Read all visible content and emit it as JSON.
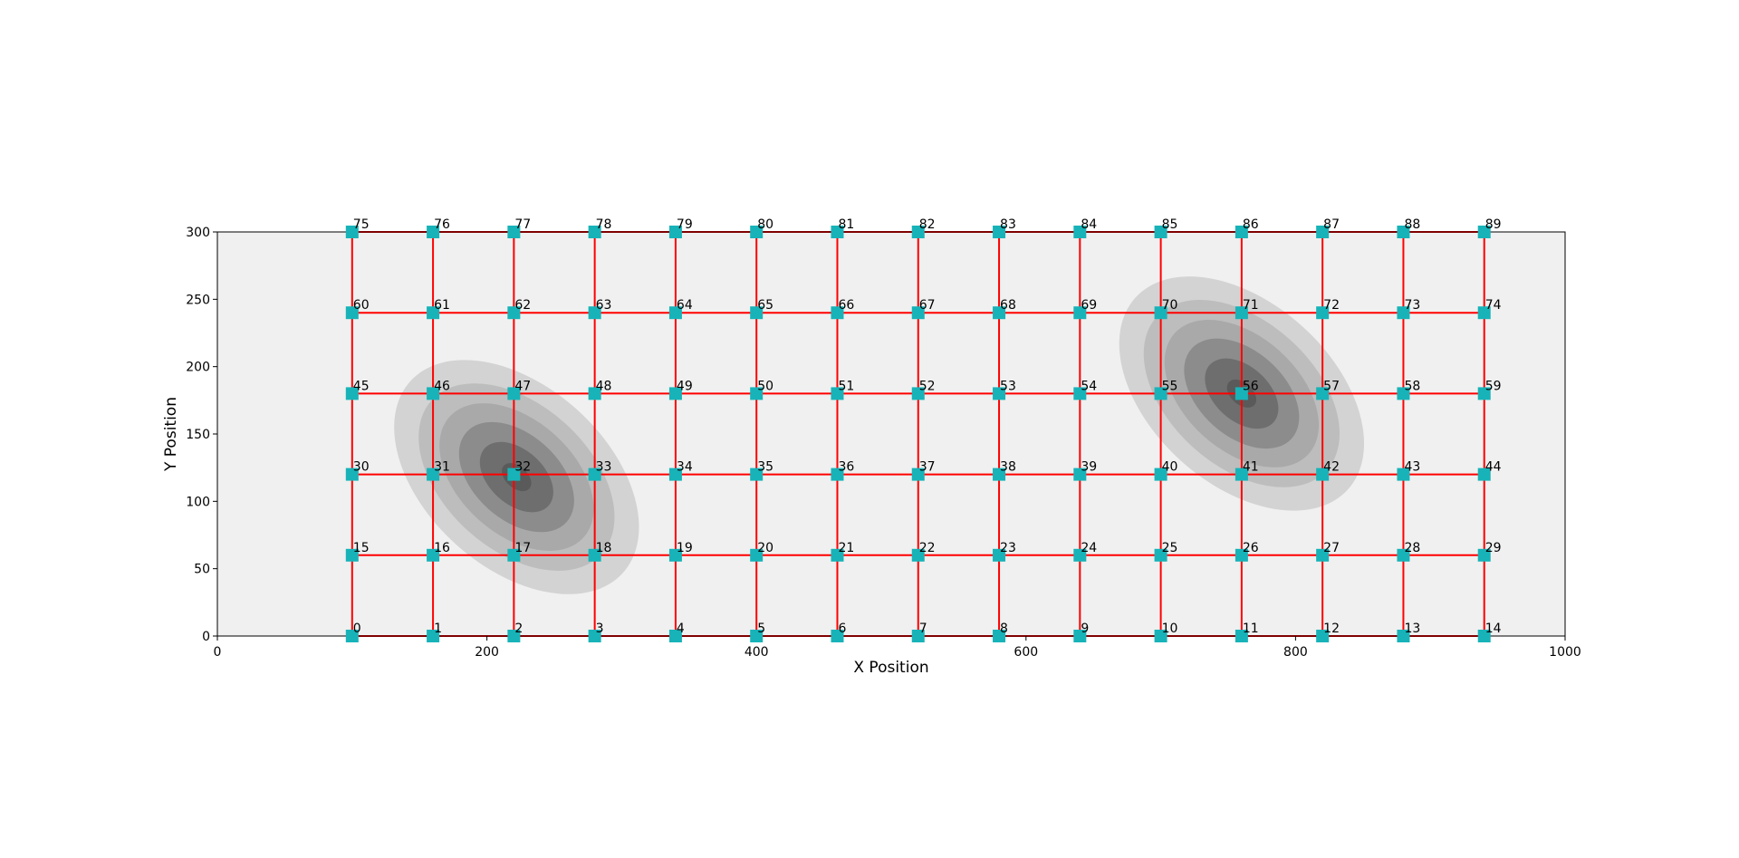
{
  "chart_data": {
    "type": "scatter",
    "xlabel": "X Position",
    "ylabel": "Y Position",
    "xlim": [
      0,
      1000
    ],
    "ylim": [
      0,
      300
    ],
    "xticks": [
      0,
      200,
      400,
      600,
      800,
      1000
    ],
    "yticks": [
      0,
      50,
      100,
      150,
      200,
      250,
      300
    ],
    "grid": false,
    "background": "#f0f0f0",
    "edge_color": "#ff0000",
    "density_colors": [
      "#d3d3d3",
      "#bdbdbd",
      "#a9a9a9",
      "#8c8c8c",
      "#6e6e6e",
      "#5a5a5a"
    ],
    "density_centers": {
      "x": [
        222,
        760
      ],
      "y": [
        118,
        180
      ]
    },
    "series": [
      {
        "color": "#17b3b8",
        "x": [
          100,
          160,
          220,
          280,
          340,
          400,
          460,
          520,
          580,
          640,
          700,
          760,
          820,
          880,
          940,
          100,
          160,
          220,
          280,
          340,
          400,
          460,
          520,
          580,
          640,
          700,
          760,
          820,
          880,
          940,
          100,
          160,
          220,
          280,
          340,
          400,
          460,
          520,
          580,
          640,
          700,
          760,
          820,
          880,
          940,
          100,
          160,
          220,
          280,
          340,
          400,
          460,
          520,
          580,
          640,
          700,
          760,
          820,
          880,
          940,
          100,
          160,
          220,
          280,
          340,
          400,
          460,
          520,
          580,
          640,
          700,
          760,
          820,
          880,
          940,
          100,
          160,
          220,
          280,
          340,
          400,
          460,
          520,
          580,
          640,
          700,
          760,
          820,
          880,
          940
        ],
        "values": [
          0,
          0,
          0,
          0,
          0,
          0,
          0,
          0,
          0,
          0,
          0,
          0,
          0,
          0,
          0,
          60,
          60,
          60,
          60,
          60,
          60,
          60,
          60,
          60,
          60,
          60,
          60,
          60,
          60,
          60,
          120,
          120,
          120,
          120,
          120,
          120,
          120,
          120,
          120,
          120,
          120,
          120,
          120,
          120,
          120,
          180,
          180,
          180,
          180,
          180,
          180,
          180,
          180,
          180,
          180,
          180,
          180,
          180,
          180,
          180,
          240,
          240,
          240,
          240,
          240,
          240,
          240,
          240,
          240,
          240,
          240,
          240,
          240,
          240,
          240,
          300,
          300,
          300,
          300,
          300,
          300,
          300,
          300,
          300,
          300,
          300,
          300,
          300,
          300,
          300
        ],
        "point_labels": [
          0,
          1,
          2,
          3,
          4,
          5,
          6,
          7,
          8,
          9,
          10,
          11,
          12,
          13,
          14,
          15,
          16,
          17,
          18,
          19,
          20,
          21,
          22,
          23,
          24,
          25,
          26,
          27,
          28,
          29,
          30,
          31,
          32,
          33,
          34,
          35,
          36,
          37,
          38,
          39,
          40,
          41,
          42,
          43,
          44,
          45,
          46,
          47,
          48,
          49,
          50,
          51,
          52,
          53,
          54,
          55,
          56,
          57,
          58,
          59,
          60,
          61,
          62,
          63,
          64,
          65,
          66,
          67,
          68,
          69,
          70,
          71,
          72,
          73,
          74,
          75,
          76,
          77,
          78,
          79,
          80,
          81,
          82,
          83,
          84,
          85,
          86,
          87,
          88,
          89
        ]
      }
    ]
  }
}
